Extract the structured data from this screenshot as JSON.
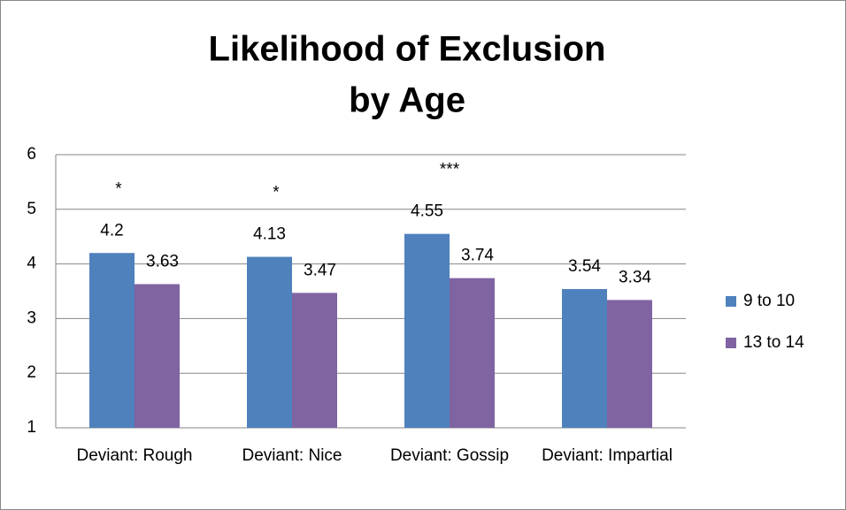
{
  "chart_data": {
    "type": "bar",
    "title": [
      "Likelihood of Exclusion",
      "by Age"
    ],
    "categories": [
      "Deviant: Rough",
      "Deviant: Nice",
      "Deviant: Gossip",
      "Deviant: Impartial"
    ],
    "series": [
      {
        "name": "9 to 10",
        "color": "#4f81bd",
        "values": [
          4.2,
          4.13,
          4.55,
          3.54
        ]
      },
      {
        "name": "13 to 14",
        "color": "#8064a2",
        "values": [
          3.63,
          3.47,
          3.74,
          3.34
        ]
      }
    ],
    "annotations": [
      "*",
      "*",
      "***",
      null
    ],
    "ylim": [
      1,
      6
    ],
    "yticks": [
      1,
      2,
      3,
      4,
      5,
      6
    ],
    "grid": true,
    "legend": "right"
  }
}
